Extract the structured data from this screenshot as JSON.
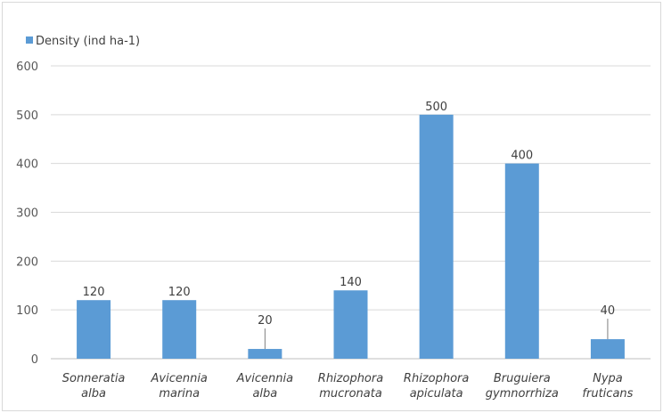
{
  "chart_data": {
    "type": "bar",
    "categories": [
      [
        "Sonneratia",
        "alba"
      ],
      [
        "Avicennia",
        "marina"
      ],
      [
        "Avicennia",
        "alba"
      ],
      [
        "Rhizophora",
        "mucronata"
      ],
      [
        "Rhizophora",
        "apiculata"
      ],
      [
        "Bruguiera",
        "gymnorrhiza"
      ],
      [
        "Nypa",
        "fruticans"
      ]
    ],
    "series": [
      {
        "name": "Density (ind ha-1)",
        "values": [
          120,
          120,
          20,
          140,
          500,
          400,
          40
        ],
        "color": "#5b9bd5"
      }
    ],
    "data_labels": [
      "120",
      "120",
      "20",
      "140",
      "500",
      "400",
      "40"
    ],
    "yticks": [
      0,
      100,
      200,
      300,
      400,
      500,
      600
    ],
    "ylim": [
      0,
      600
    ],
    "grid": true,
    "legend_position": "top-left",
    "title": "",
    "xlabel": "",
    "ylabel": ""
  }
}
